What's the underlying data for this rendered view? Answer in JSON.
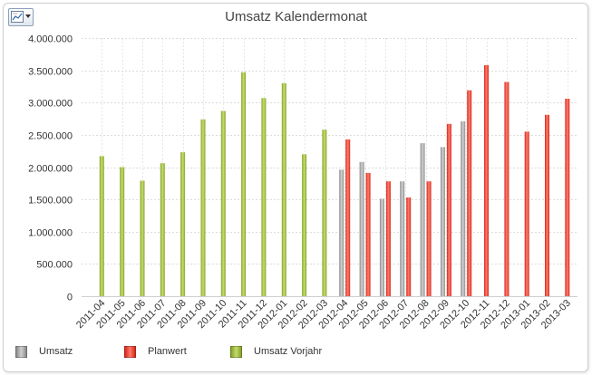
{
  "chart_data": {
    "type": "bar",
    "title": "Umsatz Kalendermonat",
    "categories": [
      "2011-04",
      "2011-05",
      "2011-06",
      "2011-07",
      "2011-08",
      "2011-09",
      "2011-10",
      "2011-11",
      "2011-12",
      "2012-01",
      "2012-02",
      "2012-03",
      "2012-04",
      "2012-05",
      "2012-06",
      "2012-07",
      "2012-08",
      "2012-09",
      "2012-10",
      "2012-11",
      "2012-12",
      "2013-01",
      "2013-02",
      "2013-03"
    ],
    "series": [
      {
        "name": "Umsatz",
        "color": "#9a9a9a",
        "values": [
          null,
          null,
          null,
          null,
          null,
          null,
          null,
          null,
          null,
          null,
          null,
          null,
          1960000,
          2080000,
          1510000,
          1780000,
          2370000,
          2310000,
          2710000,
          null,
          null,
          null,
          null,
          null
        ]
      },
      {
        "name": "Planwert",
        "color": "#ee3b2b",
        "values": [
          null,
          null,
          null,
          null,
          null,
          null,
          null,
          null,
          null,
          null,
          null,
          null,
          2430000,
          1910000,
          1780000,
          1530000,
          1780000,
          2670000,
          3190000,
          3580000,
          3320000,
          2550000,
          2810000,
          3060000
        ]
      },
      {
        "name": "Umsatz Vorjahr",
        "color": "#9ab73a",
        "values": [
          2170000,
          2000000,
          1790000,
          2060000,
          2230000,
          2740000,
          2870000,
          3470000,
          3070000,
          3300000,
          2200000,
          2580000,
          null,
          null,
          null,
          null,
          null,
          null,
          null,
          null,
          null,
          null,
          null,
          null
        ]
      }
    ],
    "ylim": [
      0,
      4000000
    ],
    "yticks": [
      "0",
      "500.000",
      "1.000.000",
      "1.500.000",
      "2.000.000",
      "2.500.000",
      "3.000.000",
      "3.500.000",
      "4.000.000"
    ],
    "grid": true,
    "legend_position": "bottom-left"
  }
}
